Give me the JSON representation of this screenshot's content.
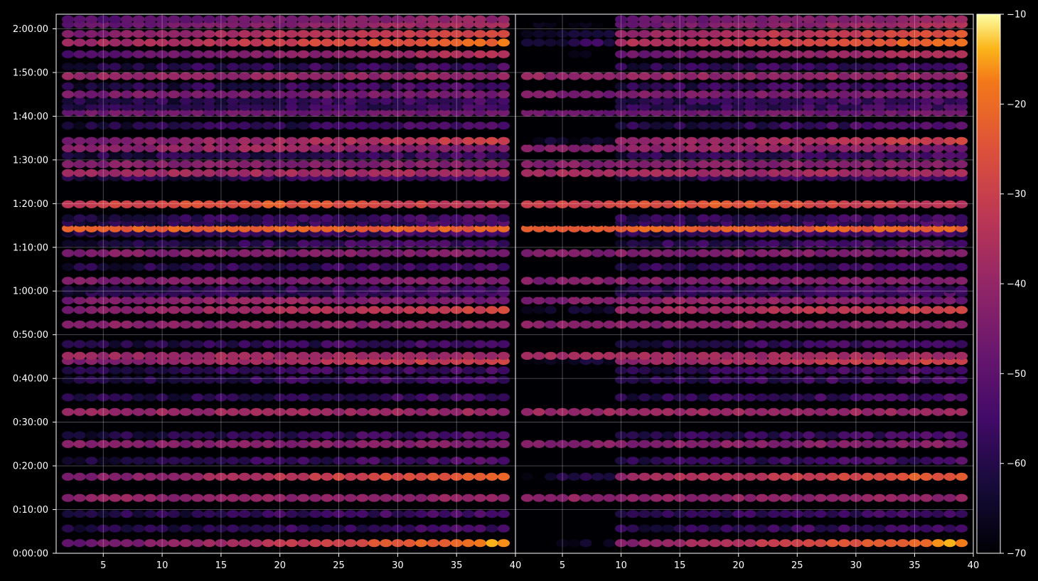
{
  "chart_data": {
    "type": "heatmap",
    "marker": "ellipse",
    "background": "#000000",
    "text_color": "#ffffff",
    "colormap": "inferno",
    "grid": true,
    "y_axis": {
      "min_seconds": 0,
      "max_seconds": 7400,
      "tick_values_seconds": [
        0,
        600,
        1200,
        1800,
        2400,
        3000,
        3600,
        4200,
        4800,
        5400,
        6000,
        6600,
        7200
      ],
      "tick_labels": [
        "0:00:00",
        "0:10:00",
        "0:20:00",
        "0:30:00",
        "0:40:00",
        "0:50:00",
        "1:00:00",
        "1:10:00",
        "1:20:00",
        "1:30:00",
        "1:40:00",
        "1:50:00",
        "2:00:00"
      ]
    },
    "colorbar": {
      "min": -70,
      "max": -10,
      "ticks": [
        -70,
        -60,
        -50,
        -40,
        -30,
        -20,
        -10
      ],
      "tick_labels": [
        "−70",
        "−60",
        "−50",
        "−40",
        "−30",
        "−20",
        "−10"
      ]
    },
    "panels": [
      {
        "name": "left",
        "x_range": [
          1,
          40
        ],
        "x_ticks": [
          5,
          10,
          15,
          20,
          25,
          30,
          35
        ],
        "x_tick_labels": [
          "5",
          "10",
          "15",
          "20",
          "25",
          "30",
          "35"
        ]
      },
      {
        "name": "right",
        "x_range": [
          1,
          40
        ],
        "x_ticks": [
          5,
          10,
          15,
          20,
          25,
          30,
          35,
          40
        ],
        "x_tick_labels": [
          "5",
          "10",
          "15",
          "20",
          "25",
          "30",
          "35",
          "40"
        ],
        "extra_left_tick_label": "40"
      }
    ],
    "data_x_min": 2,
    "data_x_max": 39,
    "time_rows_seconds": [
      140,
      340,
      540,
      760,
      1050,
      1270,
      1500,
      1620,
      1940,
      2140,
      2380,
      2510,
      2640,
      2710,
      2870,
      3140,
      3340,
      3470,
      3570,
      3620,
      3740,
      3930,
      4120,
      4250,
      4390,
      4410,
      4460,
      4540,
      4600,
      4790,
      5160,
      5220,
      5340,
      5460,
      5560,
      5660,
      5870,
      6050,
      6130,
      6210,
      6300,
      6410,
      6550,
      6680,
      6850,
      7010,
      7130,
      7260,
      7330
    ],
    "bright_rows": [
      {
        "t": 140,
        "peak": -16,
        "base": -50,
        "trend": "rising"
      },
      {
        "t": 760,
        "peak": -38,
        "base": -48,
        "trend": "flat"
      },
      {
        "t": 1050,
        "peak": -22,
        "base": -45,
        "trend": "rising"
      },
      {
        "t": 1500,
        "peak": -40,
        "base": -50,
        "trend": "flat"
      },
      {
        "t": 1940,
        "peak": -36,
        "base": -46,
        "trend": "flat"
      },
      {
        "t": 2640,
        "peak": -28,
        "base": -45,
        "trend": "rising"
      },
      {
        "t": 2710,
        "peak": -34,
        "base": -48,
        "trend": "flat"
      },
      {
        "t": 3140,
        "peak": -40,
        "base": -48,
        "trend": "flat"
      },
      {
        "t": 3340,
        "peak": -28,
        "base": -45,
        "trend": "rising"
      },
      {
        "t": 3470,
        "peak": -34,
        "base": -48,
        "trend": "mid"
      },
      {
        "t": 3740,
        "peak": -40,
        "base": -52,
        "trend": "flat"
      },
      {
        "t": 4120,
        "peak": -40,
        "base": -52,
        "trend": "flat"
      },
      {
        "t": 4460,
        "peak": -18,
        "base": -32,
        "trend": "flat"
      },
      {
        "t": 4790,
        "peak": -16,
        "base": -35,
        "trend": "mid"
      },
      {
        "t": 5220,
        "peak": -34,
        "base": -46,
        "trend": "flat"
      },
      {
        "t": 5340,
        "peak": -40,
        "base": -50,
        "trend": "flat"
      },
      {
        "t": 5560,
        "peak": -34,
        "base": -46,
        "trend": "mid"
      },
      {
        "t": 5660,
        "peak": -30,
        "base": -46,
        "trend": "rising"
      },
      {
        "t": 6050,
        "peak": -44,
        "base": -54,
        "trend": "flat"
      },
      {
        "t": 6300,
        "peak": -42,
        "base": -52,
        "trend": "flat"
      },
      {
        "t": 6550,
        "peak": -36,
        "base": -50,
        "trend": "flat"
      },
      {
        "t": 6850,
        "peak": -34,
        "base": -52,
        "trend": "rising"
      },
      {
        "t": 7010,
        "peak": -20,
        "base": -40,
        "trend": "rising"
      },
      {
        "t": 7130,
        "peak": -26,
        "base": -44,
        "trend": "rising"
      },
      {
        "t": 7260,
        "peak": -36,
        "base": -50,
        "trend": "rising"
      },
      {
        "t": 7330,
        "peak": -40,
        "base": -52,
        "trend": "rising"
      }
    ]
  }
}
